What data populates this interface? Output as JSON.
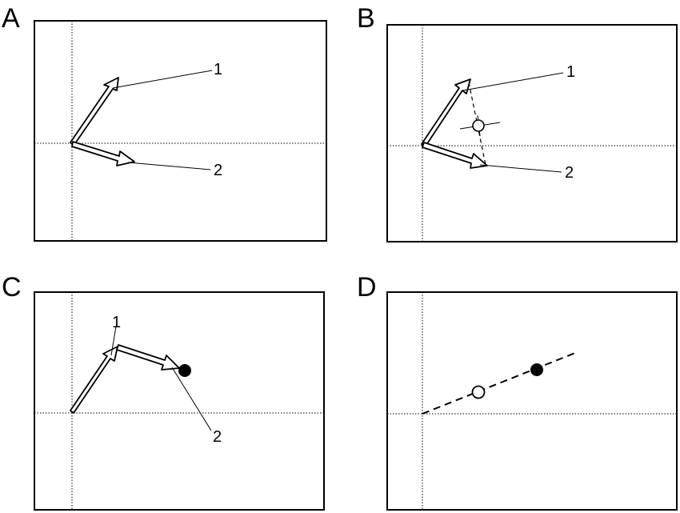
{
  "panels": [
    {
      "letter": "A",
      "labels": [
        "1",
        "2"
      ]
    },
    {
      "letter": "B",
      "labels": [
        "1",
        "2"
      ]
    },
    {
      "letter": "C",
      "labels": [
        "1",
        "2"
      ]
    },
    {
      "letter": "D",
      "labels": []
    }
  ]
}
